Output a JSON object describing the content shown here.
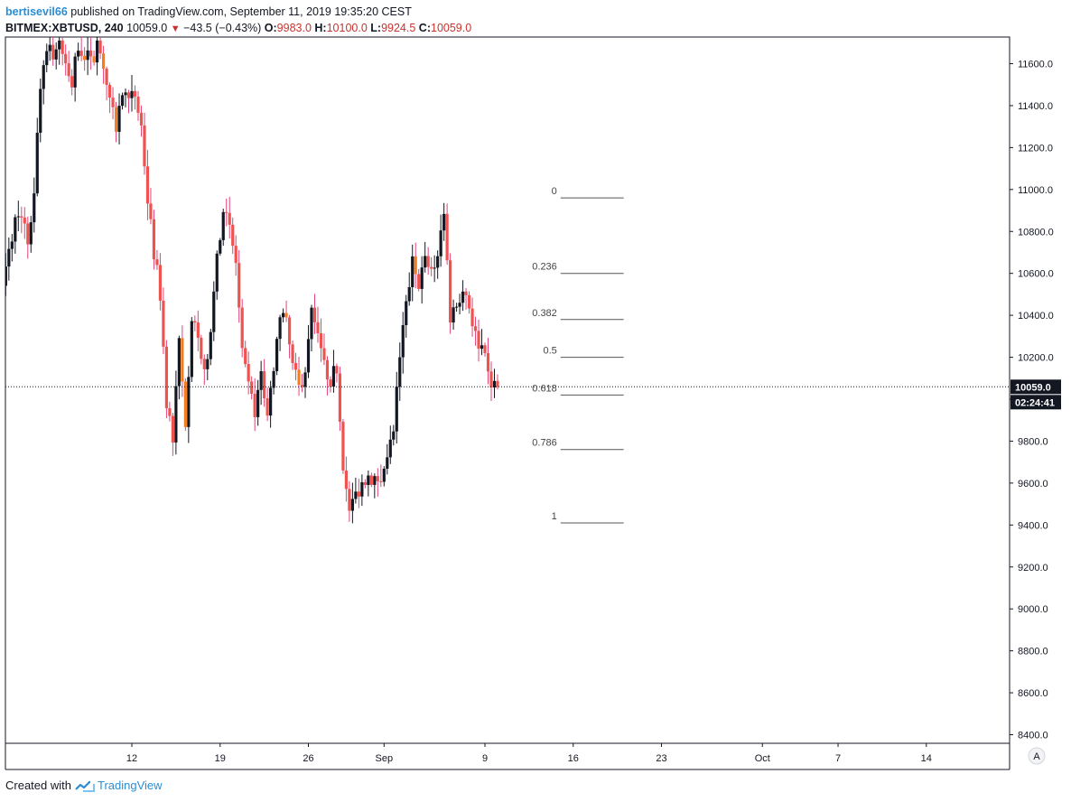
{
  "header": {
    "username": "bertisevil66",
    "published_text": " published on TradingView.com, September 11, 2019 19:35:20 CEST",
    "symbol": "BITMEX:XBTUSD, 240",
    "last_price": "10059.0",
    "change": "−43.5 (−0.43%)",
    "open_label": "O:",
    "open_value": "9983.0",
    "high_label": "H:",
    "high_value": "10100.0",
    "low_label": "L:",
    "low_value": "9924.5",
    "close_label": "C:",
    "close_value": "10059.0"
  },
  "footer": {
    "created_with": "Created with",
    "brand": "TradingView"
  },
  "price_badge": "10059.0",
  "countdown_badge": "02:24:41",
  "auto_scale_label": "A",
  "colors": {
    "up": "#131722",
    "down": "#ef5350",
    "highlight": "#f57c1f",
    "wick_down": "#e0457b",
    "badge_bg": "#131722",
    "axis_line": "#131722"
  },
  "chart_data": {
    "type": "candlestick",
    "symbol": "BITMEX:XBTUSD",
    "timeframe": "240",
    "ylim": [
      8330,
      11780
    ],
    "y_ticks": [
      8400,
      8600,
      8800,
      9000,
      9200,
      9400,
      9600,
      9800,
      10000,
      10200,
      10400,
      10600,
      10800,
      11000,
      11200,
      11400,
      11600
    ],
    "y_tick_labels": [
      "8400.0",
      "8600.0",
      "8800.0",
      "9000.0",
      "9200.0",
      "9400.0",
      "9600.0",
      "9800.0",
      "",
      "10200.0",
      "10400.0",
      "10600.0",
      "10800.0",
      "11000.0",
      "11200.0",
      "11400.0",
      "11600.0"
    ],
    "x_labels": [
      {
        "label": "12",
        "day": 12
      },
      {
        "label": "19",
        "day": 19
      },
      {
        "label": "26",
        "day": 26
      },
      {
        "label": "Sep",
        "day": 32
      },
      {
        "label": "9",
        "day": 40
      },
      {
        "label": "16",
        "day": 47
      },
      {
        "label": "23",
        "day": 54
      },
      {
        "label": "Oct",
        "day": 62
      },
      {
        "label": "7",
        "day": 68
      },
      {
        "label": "14",
        "day": 75
      }
    ],
    "current_price": 10059.0,
    "fibonacci": {
      "levels": [
        {
          "label": "0",
          "price": 10960
        },
        {
          "label": "0.236",
          "price": 10600
        },
        {
          "label": "0.382",
          "price": 10380
        },
        {
          "label": "0.5",
          "price": 10200
        },
        {
          "label": "0.618",
          "price": 10020
        },
        {
          "label": "0.786",
          "price": 9760
        },
        {
          "label": "1",
          "price": 9410
        }
      ],
      "start_day": 46,
      "end_day": 51
    },
    "price_path": [
      [
        1.5,
        10600
      ],
      [
        2.0,
        10520
      ],
      [
        2.5,
        10700
      ],
      [
        3.0,
        10850
      ],
      [
        3.5,
        10900
      ],
      [
        4.0,
        10750
      ],
      [
        4.5,
        11000
      ],
      [
        5.0,
        11500
      ],
      [
        5.5,
        11700
      ],
      [
        6.0,
        11650
      ],
      [
        6.5,
        11700
      ],
      [
        7.0,
        11600
      ],
      [
        7.5,
        11500
      ],
      [
        8.0,
        11700
      ],
      [
        8.5,
        11650
      ],
      [
        9.0,
        11600
      ],
      [
        9.5,
        11700
      ],
      [
        10.0,
        11600
      ],
      [
        10.5,
        11400
      ],
      [
        11.0,
        11300
      ],
      [
        11.5,
        11450
      ],
      [
        12.0,
        11400
      ],
      [
        12.5,
        11450
      ],
      [
        13.0,
        11300
      ],
      [
        13.5,
        10950
      ],
      [
        14.0,
        10700
      ],
      [
        14.5,
        10500
      ],
      [
        15.0,
        10000
      ],
      [
        15.5,
        9800
      ],
      [
        16.0,
        10250
      ],
      [
        16.5,
        9900
      ],
      [
        17.0,
        10400
      ],
      [
        17.5,
        10300
      ],
      [
        18.0,
        10100
      ],
      [
        18.5,
        10350
      ],
      [
        19.0,
        10650
      ],
      [
        19.5,
        10900
      ],
      [
        20.0,
        10800
      ],
      [
        20.5,
        10650
      ],
      [
        21.0,
        10200
      ],
      [
        21.5,
        10050
      ],
      [
        22.0,
        9950
      ],
      [
        22.5,
        10100
      ],
      [
        23.0,
        9950
      ],
      [
        23.5,
        10100
      ],
      [
        24.0,
        10400
      ],
      [
        24.5,
        10350
      ],
      [
        25.0,
        10150
      ],
      [
        25.5,
        10050
      ],
      [
        26.0,
        10150
      ],
      [
        26.5,
        10400
      ],
      [
        27.0,
        10350
      ],
      [
        27.5,
        10150
      ],
      [
        28.0,
        10100
      ],
      [
        28.5,
        10150
      ],
      [
        29.0,
        9700
      ],
      [
        29.5,
        9450
      ],
      [
        30.0,
        9550
      ],
      [
        30.5,
        9600
      ],
      [
        31.0,
        9650
      ],
      [
        31.5,
        9600
      ],
      [
        32.0,
        9650
      ],
      [
        32.5,
        9700
      ],
      [
        33.0,
        9850
      ],
      [
        33.5,
        10200
      ],
      [
        34.0,
        10450
      ],
      [
        34.5,
        10650
      ],
      [
        35.0,
        10550
      ],
      [
        35.5,
        10650
      ],
      [
        36.0,
        10600
      ],
      [
        36.5,
        10700
      ],
      [
        37.0,
        10900
      ],
      [
        37.5,
        10400
      ],
      [
        38.0,
        10450
      ],
      [
        38.5,
        10550
      ],
      [
        39.0,
        10450
      ],
      [
        39.5,
        10300
      ],
      [
        40.0,
        10250
      ],
      [
        40.5,
        10100
      ],
      [
        41.0,
        10059
      ]
    ]
  }
}
